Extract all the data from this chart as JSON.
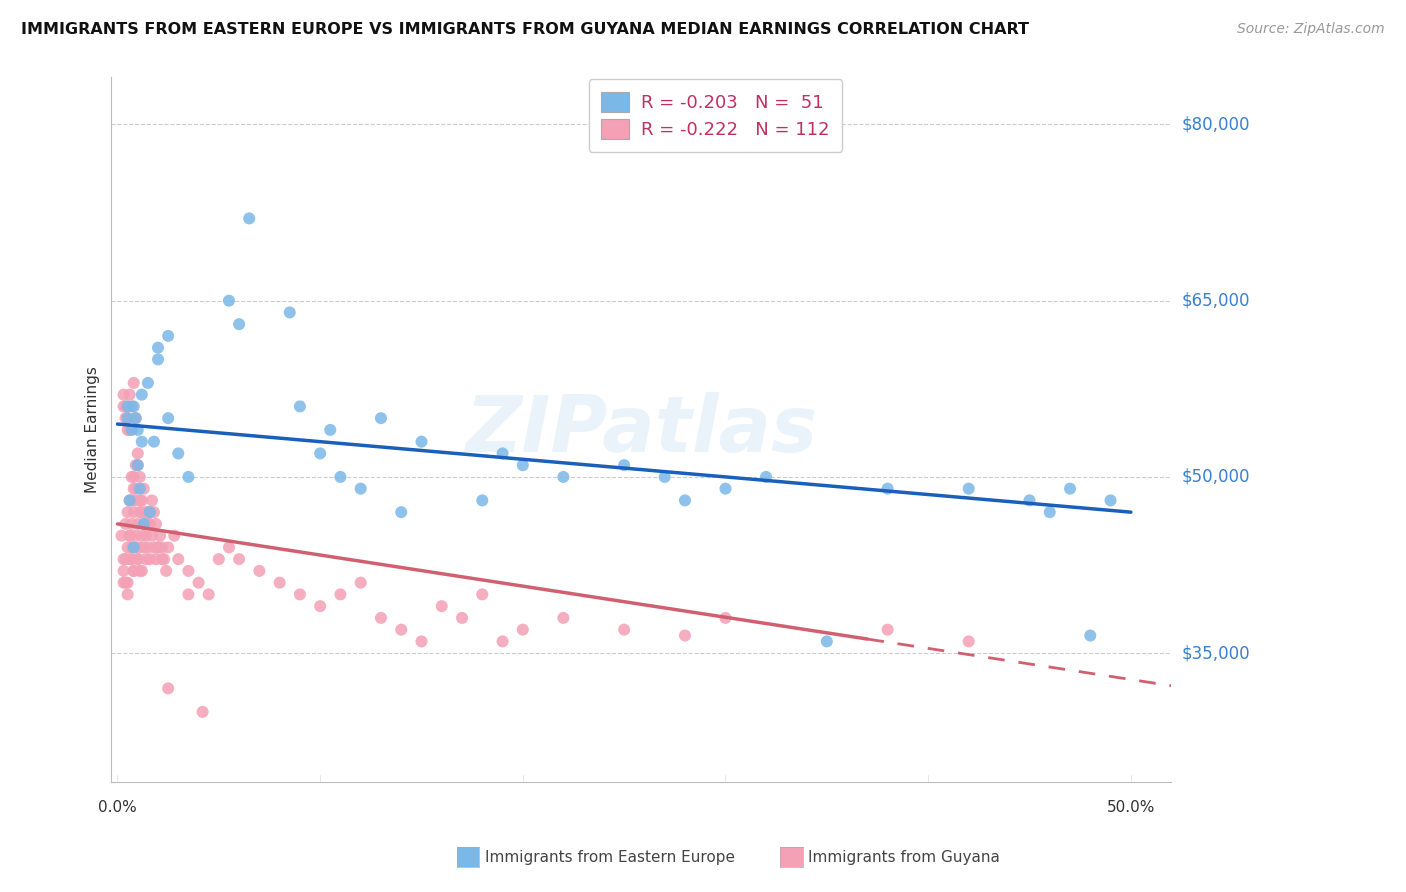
{
  "title": "IMMIGRANTS FROM EASTERN EUROPE VS IMMIGRANTS FROM GUYANA MEDIAN EARNINGS CORRELATION CHART",
  "source": "Source: ZipAtlas.com",
  "ylabel": "Median Earnings",
  "ytick_labels": [
    "$35,000",
    "$50,000",
    "$65,000",
    "$80,000"
  ],
  "ytick_values": [
    35000,
    50000,
    65000,
    80000
  ],
  "ymin": 24000,
  "ymax": 84000,
  "xmin": -0.003,
  "xmax": 0.52,
  "legend_blue_R": "R = -0.203",
  "legend_blue_N": "N =  51",
  "legend_pink_R": "R = -0.222",
  "legend_pink_N": "N = 112",
  "blue_color": "#7ab8e8",
  "pink_color": "#f4a0b5",
  "trend_blue_color": "#1a5fba",
  "trend_pink_color": "#d06070",
  "watermark": "ZIPatlas",
  "blue_scatter_x": [
    0.005,
    0.008,
    0.01,
    0.012,
    0.015,
    0.018,
    0.02,
    0.025,
    0.03,
    0.035,
    0.01,
    0.012,
    0.005,
    0.007,
    0.009,
    0.006,
    0.011,
    0.013,
    0.008,
    0.016,
    0.02,
    0.025,
    0.06,
    0.055,
    0.065,
    0.085,
    0.09,
    0.1,
    0.105,
    0.11,
    0.13,
    0.15,
    0.12,
    0.14,
    0.18,
    0.2,
    0.19,
    0.22,
    0.25,
    0.27,
    0.3,
    0.28,
    0.32,
    0.35,
    0.38,
    0.42,
    0.45,
    0.46,
    0.47,
    0.48,
    0.49
  ],
  "blue_scatter_y": [
    55000,
    56000,
    54000,
    57000,
    58000,
    53000,
    60000,
    55000,
    52000,
    50000,
    51000,
    53000,
    56000,
    54000,
    55000,
    48000,
    49000,
    46000,
    44000,
    47000,
    61000,
    62000,
    63000,
    65000,
    72000,
    64000,
    56000,
    52000,
    54000,
    50000,
    55000,
    53000,
    49000,
    47000,
    48000,
    51000,
    52000,
    50000,
    51000,
    50000,
    49000,
    48000,
    50000,
    36000,
    49000,
    49000,
    48000,
    47000,
    49000,
    36500,
    48000
  ],
  "pink_scatter_x": [
    0.002,
    0.003,
    0.004,
    0.005,
    0.006,
    0.007,
    0.008,
    0.009,
    0.01,
    0.011,
    0.012,
    0.013,
    0.014,
    0.015,
    0.016,
    0.003,
    0.004,
    0.005,
    0.006,
    0.007,
    0.008,
    0.009,
    0.01,
    0.011,
    0.012,
    0.003,
    0.004,
    0.005,
    0.006,
    0.007,
    0.008,
    0.009,
    0.01,
    0.011,
    0.005,
    0.006,
    0.007,
    0.008,
    0.009,
    0.01,
    0.011,
    0.012,
    0.013,
    0.014,
    0.015,
    0.016,
    0.017,
    0.018,
    0.019,
    0.02,
    0.021,
    0.022,
    0.023,
    0.024,
    0.025,
    0.03,
    0.035,
    0.04,
    0.045,
    0.05,
    0.055,
    0.06,
    0.07,
    0.08,
    0.09,
    0.1,
    0.11,
    0.12,
    0.13,
    0.14,
    0.15,
    0.16,
    0.17,
    0.18,
    0.19,
    0.2,
    0.22,
    0.25,
    0.28,
    0.3,
    0.003,
    0.004,
    0.005,
    0.006,
    0.007,
    0.008,
    0.009,
    0.003,
    0.004,
    0.005,
    0.006,
    0.007,
    0.008,
    0.009,
    0.01,
    0.011,
    0.012,
    0.013,
    0.014,
    0.015,
    0.016,
    0.017,
    0.018,
    0.019,
    0.02,
    0.022,
    0.025,
    0.028,
    0.035,
    0.042,
    0.38,
    0.42
  ],
  "pink_scatter_y": [
    45000,
    43000,
    46000,
    47000,
    48000,
    50000,
    49000,
    51000,
    52000,
    48000,
    47000,
    46000,
    45000,
    44000,
    43000,
    42000,
    41000,
    40000,
    45000,
    46000,
    47000,
    48000,
    43000,
    44000,
    42000,
    41000,
    43000,
    44000,
    45000,
    43000,
    42000,
    44000,
    43000,
    42000,
    41000,
    43000,
    44000,
    42000,
    45000,
    46000,
    47000,
    45000,
    44000,
    43000,
    47000,
    46000,
    45000,
    44000,
    43000,
    44000,
    45000,
    44000,
    43000,
    42000,
    44000,
    43000,
    42000,
    41000,
    40000,
    43000,
    44000,
    43000,
    42000,
    41000,
    40000,
    39000,
    40000,
    41000,
    38000,
    37000,
    36000,
    39000,
    38000,
    40000,
    36000,
    37000,
    38000,
    37000,
    36500,
    38000,
    56000,
    55000,
    54000,
    57000,
    56000,
    58000,
    55000,
    57000,
    56000,
    55000,
    54000,
    48000,
    50000,
    49000,
    51000,
    50000,
    48000,
    49000,
    47000,
    46000,
    47000,
    48000,
    47000,
    46000,
    44000,
    43000,
    32000,
    45000,
    40000,
    30000,
    37000,
    36000
  ]
}
